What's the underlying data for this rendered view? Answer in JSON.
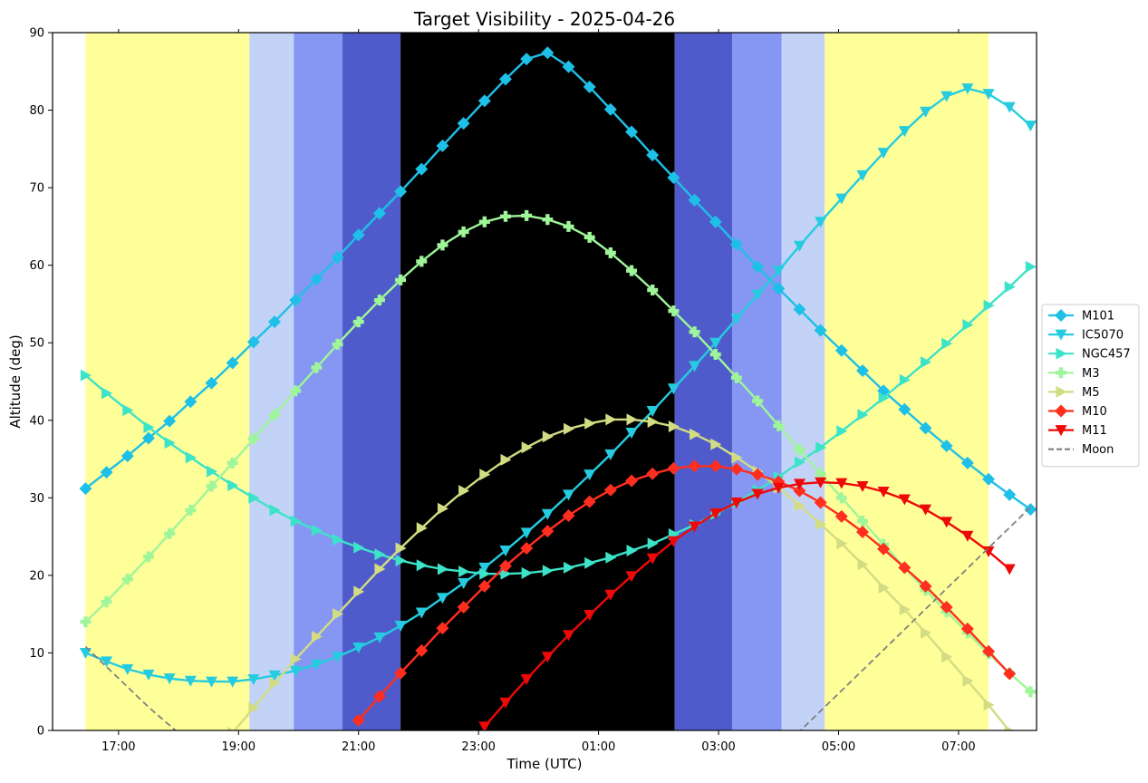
{
  "chart_data": {
    "type": "line",
    "title": "Target Visibility - 2025-04-26",
    "xlabel": "Time (UTC)",
    "ylabel": "Altitude (deg)",
    "x_ticks": [
      "17:00",
      "19:00",
      "21:00",
      "23:00",
      "01:00",
      "03:00",
      "05:00",
      "07:00"
    ],
    "y_ticks": [
      "0",
      "10",
      "20",
      "30",
      "40",
      "50",
      "60",
      "70",
      "80",
      "90"
    ],
    "ylim": [
      0,
      90
    ],
    "x_axis_range_hours": [
      15.9,
      32.3
    ],
    "grid": false,
    "legend_position": "center-right",
    "background_bands": [
      {
        "start": 16.45,
        "end": 19.18,
        "color": "#ffff99"
      },
      {
        "start": 19.18,
        "end": 19.92,
        "color": "#c3d3f7"
      },
      {
        "start": 19.92,
        "end": 20.73,
        "color": "#8596f3"
      },
      {
        "start": 20.73,
        "end": 21.7,
        "color": "#4f5bcb"
      },
      {
        "start": 21.7,
        "end": 26.27,
        "color": "#000000"
      },
      {
        "start": 26.27,
        "end": 27.23,
        "color": "#4f5bcb"
      },
      {
        "start": 27.23,
        "end": 28.05,
        "color": "#8596f3"
      },
      {
        "start": 28.05,
        "end": 28.77,
        "color": "#c3d3f7"
      },
      {
        "start": 28.77,
        "end": 31.5,
        "color": "#ffff99"
      }
    ],
    "series": [
      {
        "name": "M101",
        "color": "#1ec0e8",
        "marker": "diamond",
        "points": [
          [
            16.45,
            31.2
          ],
          [
            16.8,
            33.3
          ],
          [
            17.15,
            35.4
          ],
          [
            17.5,
            37.7
          ],
          [
            17.85,
            39.9
          ],
          [
            18.2,
            42.4
          ],
          [
            18.55,
            44.8
          ],
          [
            18.9,
            47.4
          ],
          [
            19.25,
            50.1
          ],
          [
            19.6,
            52.7
          ],
          [
            19.95,
            55.5
          ],
          [
            20.3,
            58.2
          ],
          [
            20.65,
            61.0
          ],
          [
            21.0,
            63.9
          ],
          [
            21.35,
            66.7
          ],
          [
            21.7,
            69.5
          ],
          [
            22.05,
            72.4
          ],
          [
            22.4,
            75.4
          ],
          [
            22.75,
            78.3
          ],
          [
            23.1,
            81.2
          ],
          [
            23.45,
            84.0
          ],
          [
            23.8,
            86.6
          ],
          [
            24.15,
            87.4
          ],
          [
            24.5,
            85.6
          ],
          [
            24.85,
            83.0
          ],
          [
            25.2,
            80.1
          ],
          [
            25.55,
            77.2
          ],
          [
            25.9,
            74.2
          ],
          [
            26.25,
            71.3
          ],
          [
            26.6,
            68.4
          ],
          [
            26.95,
            65.6
          ],
          [
            27.3,
            62.7
          ],
          [
            27.65,
            59.8
          ],
          [
            28.0,
            57.0
          ],
          [
            28.35,
            54.3
          ],
          [
            28.7,
            51.6
          ],
          [
            29.05,
            49.0
          ],
          [
            29.4,
            46.4
          ],
          [
            29.75,
            43.8
          ],
          [
            30.1,
            41.4
          ],
          [
            30.45,
            39.0
          ],
          [
            30.8,
            36.7
          ],
          [
            31.15,
            34.5
          ],
          [
            31.5,
            32.4
          ],
          [
            31.85,
            30.4
          ],
          [
            32.2,
            28.5
          ]
        ]
      },
      {
        "name": "IC5070",
        "color": "#25cce0",
        "marker": "triangle-down",
        "points": [
          [
            16.45,
            10.0
          ],
          [
            16.8,
            8.9
          ],
          [
            17.15,
            7.9
          ],
          [
            17.5,
            7.2
          ],
          [
            17.85,
            6.7
          ],
          [
            18.2,
            6.4
          ],
          [
            18.55,
            6.3
          ],
          [
            18.9,
            6.3
          ],
          [
            19.25,
            6.6
          ],
          [
            19.6,
            7.1
          ],
          [
            19.95,
            7.7
          ],
          [
            20.3,
            8.5
          ],
          [
            20.65,
            9.5
          ],
          [
            21.0,
            10.7
          ],
          [
            21.35,
            12.0
          ],
          [
            21.7,
            13.5
          ],
          [
            22.05,
            15.2
          ],
          [
            22.4,
            17.1
          ],
          [
            22.75,
            19.0
          ],
          [
            23.1,
            21.0
          ],
          [
            23.45,
            23.2
          ],
          [
            23.8,
            25.5
          ],
          [
            24.15,
            27.9
          ],
          [
            24.5,
            30.4
          ],
          [
            24.85,
            33.0
          ],
          [
            25.2,
            35.6
          ],
          [
            25.55,
            38.4
          ],
          [
            25.9,
            41.2
          ],
          [
            26.25,
            44.1
          ],
          [
            26.6,
            47.0
          ],
          [
            26.95,
            50.0
          ],
          [
            27.3,
            53.1
          ],
          [
            27.65,
            56.2
          ],
          [
            28.0,
            59.3
          ],
          [
            28.35,
            62.5
          ],
          [
            28.7,
            65.6
          ],
          [
            29.05,
            68.6
          ],
          [
            29.4,
            71.6
          ],
          [
            29.75,
            74.5
          ],
          [
            30.1,
            77.3
          ],
          [
            30.45,
            79.8
          ],
          [
            30.8,
            81.8
          ],
          [
            31.15,
            82.8
          ],
          [
            31.5,
            82.1
          ],
          [
            31.85,
            80.4
          ],
          [
            32.2,
            78.0
          ]
        ]
      },
      {
        "name": "NGC457",
        "color": "#3de3c9",
        "marker": "triangle-right",
        "points": [
          [
            16.45,
            45.8
          ],
          [
            16.8,
            43.5
          ],
          [
            17.15,
            41.3
          ],
          [
            17.5,
            39.1
          ],
          [
            17.85,
            37.1
          ],
          [
            18.2,
            35.2
          ],
          [
            18.55,
            33.4
          ],
          [
            18.9,
            31.6
          ],
          [
            19.25,
            30.0
          ],
          [
            19.6,
            28.4
          ],
          [
            19.95,
            27.0
          ],
          [
            20.3,
            25.8
          ],
          [
            20.65,
            24.6
          ],
          [
            21.0,
            23.6
          ],
          [
            21.35,
            22.7
          ],
          [
            21.7,
            21.9
          ],
          [
            22.05,
            21.3
          ],
          [
            22.4,
            20.8
          ],
          [
            22.75,
            20.5
          ],
          [
            23.1,
            20.2
          ],
          [
            23.45,
            20.2
          ],
          [
            23.8,
            20.3
          ],
          [
            24.15,
            20.6
          ],
          [
            24.5,
            21.0
          ],
          [
            24.85,
            21.6
          ],
          [
            25.2,
            22.3
          ],
          [
            25.55,
            23.2
          ],
          [
            25.9,
            24.1
          ],
          [
            26.25,
            25.3
          ],
          [
            26.6,
            26.5
          ],
          [
            26.95,
            27.9
          ],
          [
            27.3,
            29.4
          ],
          [
            27.65,
            31.0
          ],
          [
            28.0,
            32.7
          ],
          [
            28.35,
            34.6
          ],
          [
            28.7,
            36.5
          ],
          [
            29.05,
            38.6
          ],
          [
            29.4,
            40.7
          ],
          [
            29.75,
            42.9
          ],
          [
            30.1,
            45.2
          ],
          [
            30.45,
            47.5
          ],
          [
            30.8,
            49.9
          ],
          [
            31.15,
            52.3
          ],
          [
            31.5,
            54.8
          ],
          [
            31.85,
            57.2
          ],
          [
            32.2,
            59.8
          ]
        ]
      },
      {
        "name": "M3",
        "color": "#9ff599",
        "marker": "plus",
        "points": [
          [
            16.45,
            14.0
          ],
          [
            16.8,
            16.6
          ],
          [
            17.15,
            19.5
          ],
          [
            17.5,
            22.4
          ],
          [
            17.85,
            25.4
          ],
          [
            18.2,
            28.4
          ],
          [
            18.55,
            31.5
          ],
          [
            18.9,
            34.5
          ],
          [
            19.25,
            37.6
          ],
          [
            19.6,
            40.7
          ],
          [
            19.95,
            43.8
          ],
          [
            20.3,
            46.8
          ],
          [
            20.65,
            49.8
          ],
          [
            21.0,
            52.7
          ],
          [
            21.35,
            55.5
          ],
          [
            21.7,
            58.1
          ],
          [
            22.05,
            60.5
          ],
          [
            22.4,
            62.6
          ],
          [
            22.75,
            64.3
          ],
          [
            23.1,
            65.6
          ],
          [
            23.45,
            66.3
          ],
          [
            23.8,
            66.4
          ],
          [
            24.15,
            65.9
          ],
          [
            24.5,
            65.0
          ],
          [
            24.85,
            63.6
          ],
          [
            25.2,
            61.6
          ],
          [
            25.55,
            59.3
          ],
          [
            25.9,
            56.8
          ],
          [
            26.25,
            54.1
          ],
          [
            26.6,
            51.4
          ],
          [
            26.95,
            48.5
          ],
          [
            27.3,
            45.5
          ],
          [
            27.65,
            42.5
          ],
          [
            28.0,
            39.3
          ],
          [
            28.35,
            36.2
          ],
          [
            28.7,
            33.1
          ],
          [
            29.05,
            30.0
          ],
          [
            29.4,
            27.0
          ],
          [
            29.75,
            24.0
          ],
          [
            30.1,
            21.0
          ],
          [
            30.45,
            18.1
          ],
          [
            30.8,
            15.3
          ],
          [
            31.15,
            12.6
          ],
          [
            31.5,
            9.9
          ],
          [
            31.85,
            7.4
          ],
          [
            32.2,
            5.0
          ]
        ]
      },
      {
        "name": "M5",
        "color": "#d2dc82",
        "marker": "triangle-right",
        "points": [
          [
            18.9,
            -0.3
          ],
          [
            19.25,
            2.9
          ],
          [
            19.6,
            6.1
          ],
          [
            19.95,
            9.2
          ],
          [
            20.3,
            12.1
          ],
          [
            20.65,
            15.0
          ],
          [
            21.0,
            17.9
          ],
          [
            21.35,
            20.8
          ],
          [
            21.7,
            23.5
          ],
          [
            22.05,
            26.1
          ],
          [
            22.4,
            28.6
          ],
          [
            22.75,
            30.9
          ],
          [
            23.1,
            33.0
          ],
          [
            23.45,
            34.9
          ],
          [
            23.8,
            36.5
          ],
          [
            24.15,
            37.9
          ],
          [
            24.5,
            38.9
          ],
          [
            24.85,
            39.6
          ],
          [
            25.2,
            40.1
          ],
          [
            25.55,
            40.1
          ],
          [
            25.9,
            39.8
          ],
          [
            26.25,
            39.2
          ],
          [
            26.6,
            38.2
          ],
          [
            26.95,
            36.9
          ],
          [
            27.3,
            35.2
          ],
          [
            27.65,
            33.4
          ],
          [
            28.0,
            31.3
          ],
          [
            28.35,
            29.0
          ],
          [
            28.7,
            26.6
          ],
          [
            29.05,
            24.1
          ],
          [
            29.4,
            21.4
          ],
          [
            29.75,
            18.4
          ],
          [
            30.1,
            15.6
          ],
          [
            30.45,
            12.6
          ],
          [
            30.8,
            9.5
          ],
          [
            31.15,
            6.4
          ],
          [
            31.5,
            3.3
          ],
          [
            31.85,
            -0.1
          ]
        ]
      },
      {
        "name": "M10",
        "color": "#ff2e1e",
        "marker": "diamond",
        "points": [
          [
            21.0,
            1.3
          ],
          [
            21.35,
            4.4
          ],
          [
            21.7,
            7.4
          ],
          [
            22.05,
            10.3
          ],
          [
            22.4,
            13.2
          ],
          [
            22.75,
            15.9
          ],
          [
            23.1,
            18.6
          ],
          [
            23.45,
            21.2
          ],
          [
            23.8,
            23.5
          ],
          [
            24.15,
            25.7
          ],
          [
            24.5,
            27.7
          ],
          [
            24.85,
            29.5
          ],
          [
            25.2,
            31.0
          ],
          [
            25.55,
            32.2
          ],
          [
            25.9,
            33.1
          ],
          [
            26.25,
            33.8
          ],
          [
            26.6,
            34.1
          ],
          [
            26.95,
            34.1
          ],
          [
            27.3,
            33.7
          ],
          [
            27.65,
            33.0
          ],
          [
            28.0,
            32.1
          ],
          [
            28.35,
            30.9
          ],
          [
            28.7,
            29.4
          ],
          [
            29.05,
            27.6
          ],
          [
            29.4,
            25.6
          ],
          [
            29.75,
            23.4
          ],
          [
            30.1,
            21.0
          ],
          [
            30.45,
            18.6
          ],
          [
            30.8,
            15.9
          ],
          [
            31.15,
            13.1
          ],
          [
            31.5,
            10.2
          ],
          [
            31.85,
            7.3
          ]
        ]
      },
      {
        "name": "M11",
        "color": "#ee0808",
        "marker": "triangle-down",
        "points": [
          [
            23.1,
            0.5
          ],
          [
            23.45,
            3.6
          ],
          [
            23.8,
            6.6
          ],
          [
            24.15,
            9.5
          ],
          [
            24.5,
            12.3
          ],
          [
            24.85,
            14.9
          ],
          [
            25.2,
            17.5
          ],
          [
            25.55,
            19.9
          ],
          [
            25.9,
            22.2
          ],
          [
            26.25,
            24.4
          ],
          [
            26.6,
            26.3
          ],
          [
            26.95,
            28.0
          ],
          [
            27.3,
            29.4
          ],
          [
            27.65,
            30.5
          ],
          [
            28.0,
            31.3
          ],
          [
            28.35,
            31.8
          ],
          [
            28.7,
            32.0
          ],
          [
            29.05,
            31.9
          ],
          [
            29.4,
            31.5
          ],
          [
            29.75,
            30.8
          ],
          [
            30.1,
            29.8
          ],
          [
            30.45,
            28.5
          ],
          [
            30.8,
            26.9
          ],
          [
            31.15,
            25.1
          ],
          [
            31.5,
            23.1
          ],
          [
            31.85,
            20.8
          ]
        ]
      },
      {
        "name": "Moon",
        "color": "#808080",
        "dashed": true,
        "marker": "none",
        "points": [
          [
            16.45,
            10.8
          ],
          [
            17.5,
            3.0
          ],
          [
            18.1,
            -1.0
          ],
          [
            28.3,
            -0.5
          ],
          [
            32.2,
            28.8
          ]
        ]
      }
    ]
  }
}
